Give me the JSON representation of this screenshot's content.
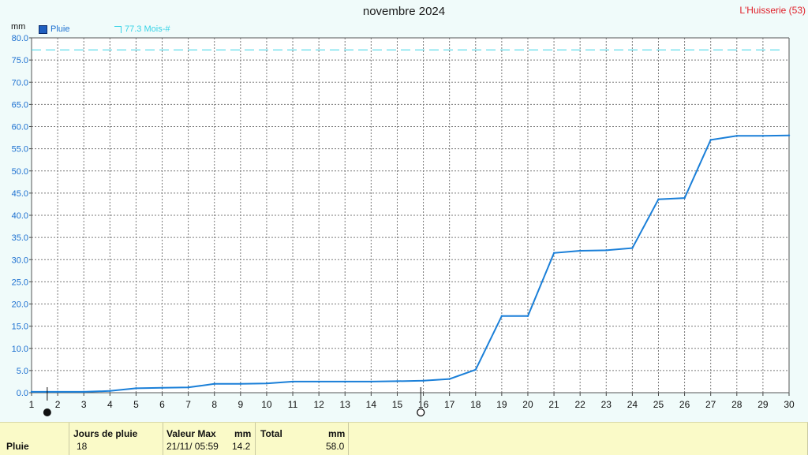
{
  "title": "novembre 2024",
  "station": "L'Huisserie (53)",
  "legend": {
    "pluie_label": "Pluie",
    "mois_label": "77.3 Mois-#"
  },
  "chart_data": {
    "type": "line",
    "title": "novembre 2024",
    "ylabel": "mm",
    "xlabel": "",
    "ylim": [
      0,
      80
    ],
    "xlim": [
      1,
      30
    ],
    "y_ticks": [
      "0.0",
      "5.0",
      "10.0",
      "15.0",
      "20.0",
      "25.0",
      "30.0",
      "35.0",
      "40.0",
      "45.0",
      "50.0",
      "55.0",
      "60.0",
      "65.0",
      "70.0",
      "75.0",
      "80.0"
    ],
    "x_ticks": [
      "1",
      "2",
      "3",
      "4",
      "5",
      "6",
      "7",
      "8",
      "9",
      "10",
      "11",
      "12",
      "13",
      "14",
      "15",
      "16",
      "17",
      "18",
      "19",
      "20",
      "21",
      "22",
      "23",
      "24",
      "25",
      "26",
      "27",
      "28",
      "29",
      "30"
    ],
    "series": [
      {
        "name": "Pluie",
        "color": "#1a7fd8",
        "x": [
          1,
          2,
          3,
          4,
          5,
          6,
          7,
          8,
          9,
          10,
          11,
          12,
          13,
          14,
          15,
          16,
          17,
          18,
          19,
          20,
          21,
          22,
          23,
          24,
          25,
          26,
          27,
          28,
          29,
          30
        ],
        "values": [
          0.2,
          0.2,
          0.2,
          0.4,
          1.0,
          1.1,
          1.2,
          2.0,
          2.0,
          2.1,
          2.5,
          2.5,
          2.5,
          2.5,
          2.6,
          2.7,
          3.1,
          5.2,
          17.3,
          17.3,
          31.5,
          32.0,
          32.1,
          32.6,
          43.6,
          43.9,
          57.0,
          57.9,
          57.9,
          58.0
        ]
      }
    ],
    "reference_line": {
      "label": "77.3 Mois-#",
      "value": 77.3,
      "color": "#38d3e6",
      "style": "dashed"
    },
    "markers": [
      {
        "day": 1.6,
        "symbol": "new-moon"
      },
      {
        "day": 15.9,
        "symbol": "full-moon"
      }
    ],
    "grid": true
  },
  "table": {
    "row_label": "Pluie",
    "jours_header": "Jours de pluie",
    "jours_value": "18",
    "valeur_max_header": "Valeur Max",
    "valeur_max_unit": "mm",
    "valeur_max_date": "21/11/  05:59",
    "valeur_max_value": "14.2",
    "total_header": "Total",
    "total_unit": "mm",
    "total_value": "58.0"
  }
}
